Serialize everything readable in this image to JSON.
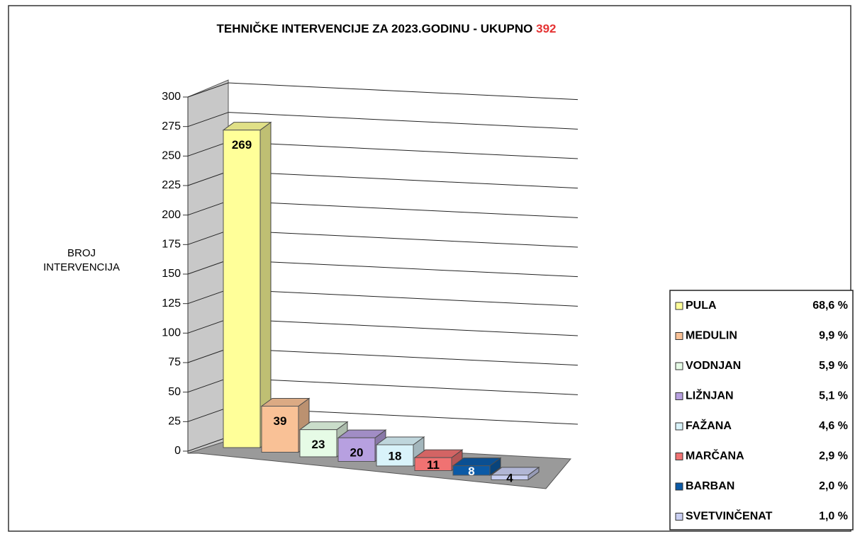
{
  "chart_data": {
    "type": "bar3d",
    "title": "TEHNIČKE INTERVENCIJE ZA 2023.GODINU - UKUPNO",
    "total": 392,
    "y_label": [
      "BROJ",
      "INTERVENCIJA"
    ],
    "categories": [
      "PULA",
      "MEDULIN",
      "VODNJAN",
      "LIŽNJAN",
      "FAŽANA",
      "MARČANA",
      "BARBAN",
      "SVETVINČENAT"
    ],
    "values": [
      269,
      39,
      23,
      20,
      18,
      11,
      8,
      4
    ],
    "colors": [
      "#ffff99",
      "#f9c196",
      "#e6fbe6",
      "#b7a0e0",
      "#d9f3fa",
      "#f07272",
      "#0b5aa6",
      "#c9cff2"
    ],
    "shares": [
      68.6,
      9.9,
      5.9,
      5.1,
      4.6,
      2.9,
      2.0,
      1.0
    ],
    "share_labels": [
      "68,6 %",
      "9,9 %",
      "5,9 %",
      "5,1 %",
      "4,6 %",
      "2,9 %",
      "2,0 %",
      "1,0 %"
    ],
    "ylim": [
      0,
      300
    ],
    "yticks": [
      0,
      25,
      50,
      75,
      100,
      125,
      150,
      175,
      200,
      225,
      250,
      275,
      300
    ],
    "grid": true
  }
}
